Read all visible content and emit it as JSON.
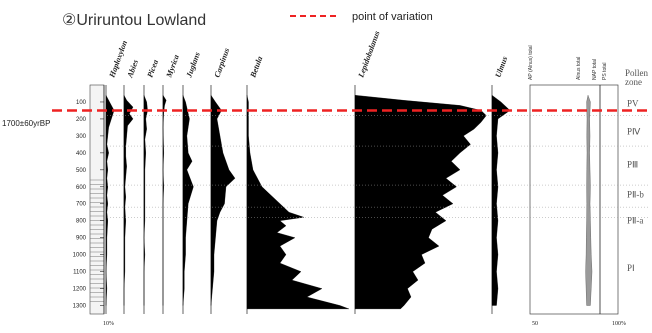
{
  "title": "②Uriruntou Lowland",
  "legend": {
    "label": "point of variation",
    "color": "#ee2222"
  },
  "variation_label": "1700±60yrBP",
  "chart_data": {
    "type": "area",
    "xlabel": "",
    "ylabel": "",
    "ylim": [
      0,
      1350
    ],
    "y_tick_labels": [
      "100",
      "200",
      "300",
      "400",
      "500",
      "600",
      "700",
      "800",
      "900",
      "1000",
      "1100",
      "1200",
      "1300"
    ],
    "y_ticks": [
      100,
      200,
      300,
      400,
      500,
      600,
      700,
      800,
      900,
      1000,
      1100,
      1200,
      1300
    ],
    "variation_depth": 150,
    "series": [
      {
        "name": "Haploxylon",
        "color": "#000000",
        "max": 20,
        "points": [
          [
            60,
            0
          ],
          [
            100,
            4
          ],
          [
            150,
            9
          ],
          [
            200,
            6
          ],
          [
            250,
            3
          ],
          [
            300,
            2
          ],
          [
            350,
            1
          ],
          [
            400,
            3
          ],
          [
            450,
            1
          ],
          [
            500,
            2
          ],
          [
            550,
            1
          ],
          [
            600,
            2
          ],
          [
            650,
            1
          ],
          [
            700,
            2
          ],
          [
            750,
            1
          ],
          [
            800,
            2
          ],
          [
            900,
            1
          ],
          [
            1000,
            1
          ],
          [
            1100,
            0
          ],
          [
            1200,
            1
          ],
          [
            1300,
            0
          ]
        ]
      },
      {
        "name": "Abies",
        "color": "#000000",
        "max": 20,
        "points": [
          [
            60,
            0
          ],
          [
            90,
            3
          ],
          [
            130,
            10
          ],
          [
            170,
            6
          ],
          [
            200,
            10
          ],
          [
            240,
            4
          ],
          [
            300,
            3
          ],
          [
            360,
            2
          ],
          [
            420,
            2
          ],
          [
            480,
            3
          ],
          [
            540,
            2
          ],
          [
            600,
            1
          ],
          [
            660,
            2
          ],
          [
            720,
            1
          ],
          [
            800,
            2
          ],
          [
            900,
            1
          ],
          [
            1000,
            1
          ],
          [
            1100,
            1
          ],
          [
            1200,
            0
          ],
          [
            1300,
            0
          ]
        ]
      },
      {
        "name": "Picea",
        "color": "#000000",
        "max": 20,
        "points": [
          [
            60,
            0
          ],
          [
            100,
            3
          ],
          [
            150,
            4
          ],
          [
            200,
            2
          ],
          [
            260,
            3
          ],
          [
            320,
            1
          ],
          [
            400,
            2
          ],
          [
            500,
            1
          ],
          [
            600,
            1
          ],
          [
            700,
            1
          ],
          [
            800,
            1
          ],
          [
            900,
            0
          ],
          [
            1000,
            1
          ],
          [
            1100,
            0
          ],
          [
            1300,
            0
          ]
        ]
      },
      {
        "name": "Myrica",
        "color": "#000000",
        "max": 20,
        "points": [
          [
            60,
            0
          ],
          [
            90,
            4
          ],
          [
            120,
            2
          ],
          [
            160,
            1
          ],
          [
            250,
            0
          ],
          [
            400,
            1
          ],
          [
            500,
            0
          ],
          [
            600,
            1
          ],
          [
            700,
            0
          ],
          [
            800,
            0
          ],
          [
            1000,
            0
          ],
          [
            1300,
            0
          ]
        ]
      },
      {
        "name": "Juglans",
        "color": "#000000",
        "max": 20,
        "points": [
          [
            60,
            0
          ],
          [
            100,
            2
          ],
          [
            200,
            5
          ],
          [
            300,
            3
          ],
          [
            400,
            4
          ],
          [
            450,
            7
          ],
          [
            500,
            3
          ],
          [
            600,
            8
          ],
          [
            700,
            4
          ],
          [
            800,
            3
          ],
          [
            900,
            2
          ],
          [
            1000,
            2
          ],
          [
            1100,
            1
          ],
          [
            1200,
            1
          ],
          [
            1300,
            0
          ]
        ]
      },
      {
        "name": "Carpinus",
        "color": "#000000",
        "max": 20,
        "points": [
          [
            60,
            0
          ],
          [
            100,
            3
          ],
          [
            150,
            7
          ],
          [
            200,
            4
          ],
          [
            300,
            6
          ],
          [
            400,
            8
          ],
          [
            500,
            12
          ],
          [
            550,
            16
          ],
          [
            600,
            10
          ],
          [
            700,
            9
          ],
          [
            750,
            6
          ],
          [
            800,
            4
          ],
          [
            900,
            3
          ],
          [
            1000,
            2
          ],
          [
            1100,
            2
          ],
          [
            1200,
            1
          ],
          [
            1300,
            0
          ]
        ]
      },
      {
        "name": "Betula",
        "color": "#000000",
        "max": 70,
        "points": [
          [
            60,
            0
          ],
          [
            100,
            1
          ],
          [
            200,
            1
          ],
          [
            300,
            1
          ],
          [
            400,
            2
          ],
          [
            500,
            4
          ],
          [
            600,
            10
          ],
          [
            650,
            16
          ],
          [
            700,
            22
          ],
          [
            750,
            28
          ],
          [
            780,
            38
          ],
          [
            800,
            22
          ],
          [
            830,
            26
          ],
          [
            870,
            20
          ],
          [
            900,
            32
          ],
          [
            950,
            22
          ],
          [
            1000,
            26
          ],
          [
            1050,
            22
          ],
          [
            1100,
            36
          ],
          [
            1150,
            30
          ],
          [
            1200,
            50
          ],
          [
            1250,
            40
          ],
          [
            1300,
            62
          ],
          [
            1320,
            68
          ]
        ]
      },
      {
        "name": "Lepidobalanus",
        "color": "#000000",
        "max": 80,
        "points": [
          [
            60,
            0
          ],
          [
            90,
            28
          ],
          [
            120,
            60
          ],
          [
            150,
            72
          ],
          [
            180,
            75
          ],
          [
            220,
            72
          ],
          [
            260,
            68
          ],
          [
            300,
            62
          ],
          [
            350,
            66
          ],
          [
            400,
            60
          ],
          [
            450,
            55
          ],
          [
            500,
            60
          ],
          [
            550,
            52
          ],
          [
            600,
            58
          ],
          [
            650,
            50
          ],
          [
            700,
            56
          ],
          [
            750,
            46
          ],
          [
            800,
            52
          ],
          [
            850,
            44
          ],
          [
            900,
            42
          ],
          [
            950,
            48
          ],
          [
            1000,
            38
          ],
          [
            1050,
            40
          ],
          [
            1100,
            33
          ],
          [
            1150,
            36
          ],
          [
            1200,
            30
          ],
          [
            1250,
            32
          ],
          [
            1300,
            28
          ],
          [
            1320,
            26
          ]
        ]
      },
      {
        "name": "Ulmus",
        "color": "#000000",
        "max": 20,
        "points": [
          [
            60,
            0
          ],
          [
            100,
            6
          ],
          [
            150,
            12
          ],
          [
            200,
            4
          ],
          [
            300,
            3
          ],
          [
            400,
            4
          ],
          [
            500,
            3
          ],
          [
            600,
            4
          ],
          [
            700,
            3
          ],
          [
            800,
            4
          ],
          [
            900,
            3
          ],
          [
            1000,
            4
          ],
          [
            1100,
            3
          ],
          [
            1200,
            4
          ],
          [
            1300,
            3
          ]
        ]
      },
      {
        "name": "Alnus-total",
        "color": "#9a9a9a",
        "max": 100,
        "points": [
          [
            60,
            0
          ],
          [
            100,
            6
          ],
          [
            200,
            4
          ],
          [
            300,
            5
          ],
          [
            400,
            4
          ],
          [
            500,
            5
          ],
          [
            600,
            6
          ],
          [
            700,
            5
          ],
          [
            800,
            6
          ],
          [
            900,
            7
          ],
          [
            1000,
            8
          ],
          [
            1100,
            10
          ],
          [
            1200,
            8
          ],
          [
            1300,
            6
          ]
        ]
      }
    ],
    "headers_right": [
      "AP (Alnus) total",
      "Alnus total",
      "NAP total",
      "PS total"
    ],
    "pollen_zone_title": [
      "Pollen",
      "zone"
    ],
    "zones": [
      {
        "label": "PV",
        "depth": 110
      },
      {
        "label": "PⅣ",
        "depth": 275
      },
      {
        "label": "PⅢ",
        "depth": 470
      },
      {
        "label": "PⅡ-b",
        "depth": 645
      },
      {
        "label": "PⅡ-a",
        "depth": 800
      },
      {
        "label": "PⅠ",
        "depth": 1080
      }
    ],
    "zone_boundaries": [
      180,
      360,
      590,
      720,
      780
    ],
    "bottom_labels": [
      "10%",
      "50",
      "100%"
    ]
  }
}
